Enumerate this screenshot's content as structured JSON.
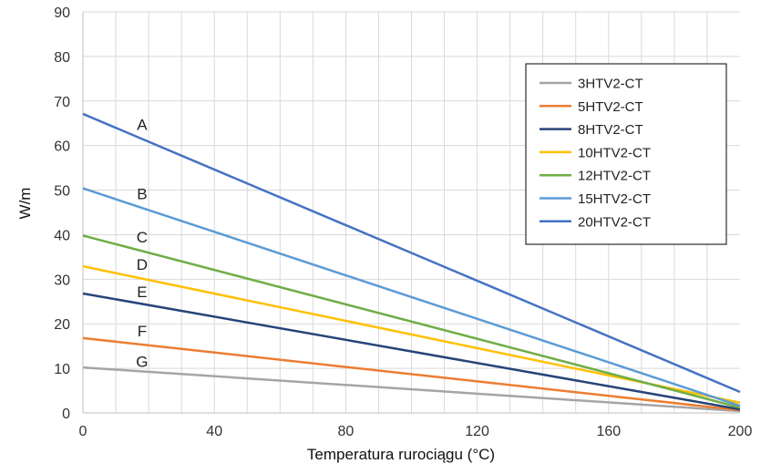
{
  "chart_data": {
    "type": "line",
    "title": "",
    "xlabel": "Temperatura rurociągu (°C)",
    "ylabel": "W/m",
    "xlim": [
      0,
      200
    ],
    "ylim": [
      0,
      90
    ],
    "x_ticks": [
      0,
      40,
      80,
      120,
      160,
      200
    ],
    "y_ticks": [
      0,
      10,
      20,
      30,
      40,
      50,
      60,
      70,
      80,
      90
    ],
    "x_minor_step": 10,
    "grid": true,
    "legend_position": "top-right",
    "series": [
      {
        "name": "3HTV2-CT",
        "label": "G",
        "color": "#a5a5a5",
        "x": [
          0,
          200
        ],
        "y": [
          10.2,
          0.4
        ]
      },
      {
        "name": "5HTV2-CT",
        "label": "F",
        "color": "#ed7d31",
        "x": [
          0,
          200
        ],
        "y": [
          16.8,
          0.6
        ]
      },
      {
        "name": "8HTV2-CT",
        "label": "E",
        "color": "#264478",
        "x": [
          0,
          200
        ],
        "y": [
          26.8,
          0.8
        ]
      },
      {
        "name": "10HTV2-CT",
        "label": "D",
        "color": "#ffc000",
        "x": [
          0,
          200
        ],
        "y": [
          32.9,
          2.3
        ]
      },
      {
        "name": "12HTV2-CT",
        "label": "C",
        "color": "#70ad47",
        "x": [
          0,
          200
        ],
        "y": [
          39.8,
          1.2
        ]
      },
      {
        "name": "15HTV2-CT",
        "label": "B",
        "color": "#5b9bd5",
        "x": [
          0,
          200
        ],
        "y": [
          50.4,
          1.6
        ]
      },
      {
        "name": "20HTV2-CT",
        "label": "A",
        "color": "#4472c4",
        "x": [
          0,
          200
        ],
        "y": [
          67.1,
          4.7
        ]
      }
    ],
    "curve_labels": [
      {
        "text": "A",
        "x": 18,
        "y": 63.5
      },
      {
        "text": "B",
        "x": 18,
        "y": 48.0
      },
      {
        "text": "C",
        "x": 18,
        "y": 38.3
      },
      {
        "text": "D",
        "x": 18,
        "y": 32.1
      },
      {
        "text": "E",
        "x": 18,
        "y": 26.0
      },
      {
        "text": "F",
        "x": 18,
        "y": 17.2
      },
      {
        "text": "G",
        "x": 18,
        "y": 10.3
      }
    ]
  }
}
